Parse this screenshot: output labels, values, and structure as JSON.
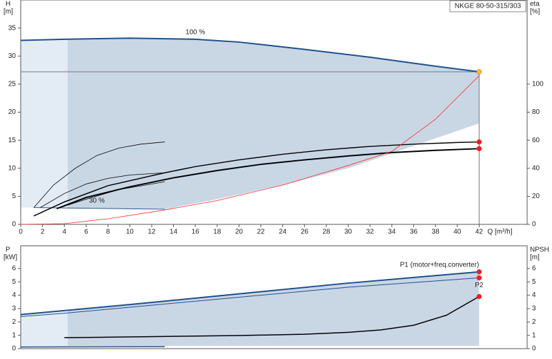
{
  "chart_data": [
    {
      "type": "line",
      "title": "NKGE 80-50-315/303",
      "ylabel": "H",
      "yunit": "[m]",
      "y2label": "eta",
      "y2unit": "[%]",
      "xlabel": "Q [m³/h]",
      "xlim": [
        0,
        46.4
      ],
      "ylim": [
        0,
        40
      ],
      "y2lim": [
        0,
        160
      ],
      "xticks": [
        0,
        2,
        4,
        6,
        8,
        10,
        12,
        14,
        16,
        18,
        20,
        22,
        24,
        26,
        28,
        30,
        32,
        34,
        36,
        38,
        40,
        42
      ],
      "yticks": [
        0,
        5,
        10,
        15,
        20,
        25,
        30,
        35
      ],
      "y2ticks": [
        0,
        20,
        40,
        60,
        80,
        100
      ],
      "areas": [
        {
          "color": "#e3ecf5",
          "x": [
            0,
            4.3,
            4.3,
            1.2,
            0
          ],
          "y": [
            32.8,
            33,
            3,
            3,
            3
          ]
        },
        {
          "color": "#c9d7e5",
          "x": [
            4.3,
            10,
            16,
            20,
            26,
            32,
            38,
            42,
            42,
            36,
            30,
            24,
            18,
            13.2,
            8,
            4.3
          ],
          "y": [
            33,
            33.2,
            33,
            32.5,
            31.2,
            29.8,
            28.2,
            27.2,
            18,
            14,
            10,
            7,
            4.5,
            2.7,
            2.9,
            3
          ]
        }
      ],
      "series": [
        {
          "name": "100 %",
          "color": "#1f4e8c",
          "width": 2,
          "x": [
            0,
            4,
            10,
            16,
            20,
            26,
            32,
            38,
            42
          ],
          "values": [
            32.8,
            33,
            33.2,
            33,
            32.5,
            31.2,
            29.8,
            28.2,
            27.2
          ]
        },
        {
          "name": "30 %",
          "color": "#1f4e8c",
          "width": 1,
          "x": [
            1.2,
            13.2
          ],
          "values": [
            3,
            2.7
          ]
        },
        {
          "color": "#000000",
          "width": 2,
          "x": [
            3.3,
            6,
            10,
            14,
            18,
            22,
            26,
            30,
            34,
            38,
            42
          ],
          "values": [
            2.8,
            4.8,
            6.7,
            8.3,
            9.6,
            10.7,
            11.5,
            12.2,
            12.8,
            13.2,
            13.5
          ]
        },
        {
          "color": "#000000",
          "width": 1.5,
          "x": [
            1.2,
            4,
            8,
            13.2,
            16,
            20,
            24,
            28,
            32,
            36,
            40,
            42
          ],
          "values": [
            1.5,
            4,
            6.9,
            9.2,
            10.3,
            11.5,
            12.5,
            13.3,
            13.9,
            14.3,
            14.6,
            14.7
          ]
        },
        {
          "color": "#000000",
          "width": 0.8,
          "x": [
            1.2,
            3,
            5,
            7,
            9,
            11,
            13.2
          ],
          "values": [
            3,
            7,
            10,
            12.3,
            13.6,
            14.3,
            14.7
          ]
        },
        {
          "color": "#000000",
          "width": 0.8,
          "x": [
            1.8,
            4,
            6,
            8,
            10,
            13.2
          ],
          "values": [
            3,
            5.5,
            7.2,
            8.2,
            8.8,
            9.2
          ]
        },
        {
          "color": "#000000",
          "width": 0.8,
          "x": [
            3.3,
            6,
            9,
            13.2
          ],
          "values": [
            2.8,
            4.5,
            6.2,
            7.6
          ]
        },
        {
          "color": "#ff2a2a",
          "width": 0.8,
          "axis": "y2",
          "x": [
            0,
            4,
            8,
            13,
            18,
            24,
            30,
            34,
            38,
            42
          ],
          "values": [
            0,
            0.5,
            4,
            10,
            17,
            28,
            42,
            52,
            75,
            106
          ]
        }
      ],
      "points": [
        {
          "x": 42,
          "y": 27.2,
          "color": "#f5c518"
        },
        {
          "x": 42,
          "y": 14.7,
          "color": "#ff1a1a"
        },
        {
          "x": 42,
          "y": 13.5,
          "color": "#ff1a1a"
        }
      ]
    },
    {
      "type": "line",
      "ylabel": "P",
      "yunit": "[kW]",
      "y2label": "NPSH",
      "y2unit": "[m]",
      "xlim": [
        0,
        46.4
      ],
      "ylim": [
        0,
        7.7
      ],
      "y2lim": [
        0,
        7.7
      ],
      "yticks": [
        0,
        1,
        2,
        3,
        4,
        5,
        6
      ],
      "y2ticks": [
        0,
        1,
        2,
        3,
        4,
        5,
        6
      ],
      "areas": [
        {
          "color": "#e3ecf5",
          "x": [
            0,
            4.3,
            4.3,
            0
          ],
          "y": [
            2.55,
            2.85,
            0.15,
            0.15
          ]
        },
        {
          "color": "#c9d7e5",
          "x": [
            4.3,
            42,
            42,
            4.3
          ],
          "y": [
            2.85,
            5.75,
            0.2,
            0.2
          ]
        }
      ],
      "series": [
        {
          "name": "P1 (motor+freq.converter)",
          "color": "#1f4e8c",
          "width": 2,
          "x": [
            0,
            4,
            10,
            20,
            30,
            42
          ],
          "values": [
            2.55,
            2.85,
            3.3,
            4.1,
            4.9,
            5.75
          ]
        },
        {
          "name": "P2",
          "color": "#1f4e8c",
          "width": 1,
          "x": [
            0,
            4,
            10,
            20,
            30,
            42
          ],
          "values": [
            2.4,
            2.65,
            3.1,
            3.85,
            4.6,
            5.3
          ]
        },
        {
          "color": "#1f4e8c",
          "width": 1.5,
          "x": [
            0,
            13.2
          ],
          "values": [
            0.12,
            0.15
          ]
        },
        {
          "color": "#000000",
          "width": 1.5,
          "axis": "y2",
          "x": [
            4,
            10,
            20,
            26,
            30,
            33,
            36,
            39,
            42
          ],
          "values": [
            0.82,
            0.88,
            0.98,
            1.08,
            1.22,
            1.4,
            1.75,
            2.5,
            3.9
          ]
        }
      ],
      "points": [
        {
          "x": 42,
          "y": 5.75,
          "color": "#ff1a1a"
        },
        {
          "x": 42,
          "y": 5.3,
          "color": "#ff1a1a"
        },
        {
          "x": 42,
          "y": 3.9,
          "color": "#ff1a1a",
          "axis": "y2"
        }
      ]
    }
  ]
}
